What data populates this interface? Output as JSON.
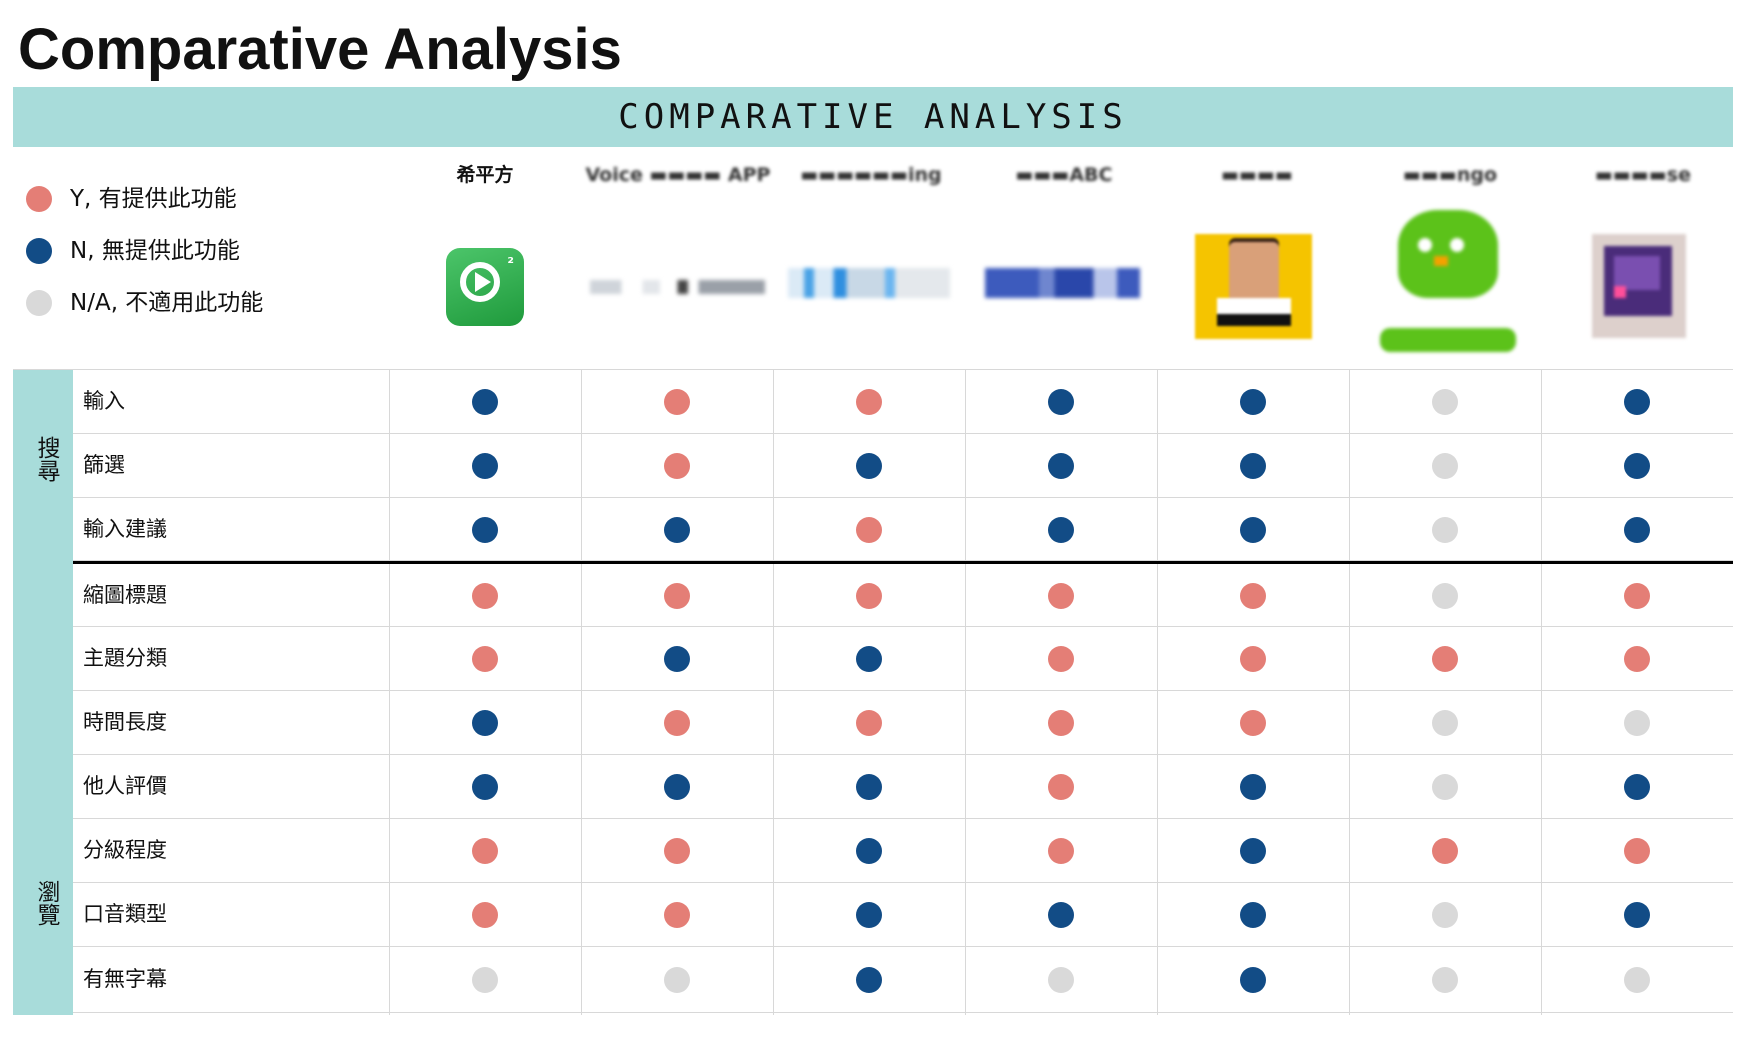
{
  "page": {
    "title": "Comparative Analysis"
  },
  "banner": {
    "text": "COMPARATIVE ANALYSIS"
  },
  "colors": {
    "Y": "#e47e76",
    "N": "#124c86",
    "NA": "#d9d9d9",
    "banner": "#a8dcda"
  },
  "legend": [
    {
      "key": "Y",
      "label": "Y, 有提供此功能"
    },
    {
      "key": "N",
      "label": "N, 無提供此功能"
    },
    {
      "key": "NA",
      "label": "N/A, 不適用此功能"
    }
  ],
  "products": [
    {
      "name": "希平方",
      "logo": "hiping-logo"
    },
    {
      "name": "Voice ▬▬▬▬ APP",
      "logo": "voice-app-logo"
    },
    {
      "name": "▬▬▬▬▬▬ing",
      "logo": "lyrics-logo"
    },
    {
      "name": "▬▬▬ABC",
      "logo": "abc-logo"
    },
    {
      "name": "▬▬▬▬",
      "logo": "tedx-logo"
    },
    {
      "name": "▬▬▬ngo",
      "logo": "duolingo-logo"
    },
    {
      "name": "▬▬▬▬se",
      "logo": "purple-app-logo"
    }
  ],
  "groups": [
    {
      "label": "搜尋",
      "rows": [
        0,
        1,
        2
      ]
    },
    {
      "label": "瀏覽",
      "rows": [
        3,
        4,
        5,
        6,
        7,
        8,
        9
      ]
    }
  ],
  "rows": [
    {
      "label": "輸入",
      "values": [
        "N",
        "Y",
        "Y",
        "N",
        "N",
        "NA",
        "N"
      ]
    },
    {
      "label": "篩選",
      "values": [
        "N",
        "Y",
        "N",
        "N",
        "N",
        "NA",
        "N"
      ]
    },
    {
      "label": "輸入建議",
      "values": [
        "N",
        "N",
        "Y",
        "N",
        "N",
        "NA",
        "N"
      ]
    },
    {
      "label": "縮圖標題",
      "values": [
        "Y",
        "Y",
        "Y",
        "Y",
        "Y",
        "NA",
        "Y"
      ]
    },
    {
      "label": "主題分類",
      "values": [
        "Y",
        "N",
        "N",
        "Y",
        "Y",
        "Y",
        "Y"
      ]
    },
    {
      "label": "時間長度",
      "values": [
        "N",
        "Y",
        "Y",
        "Y",
        "Y",
        "NA",
        "NA"
      ]
    },
    {
      "label": "他人評價",
      "values": [
        "N",
        "N",
        "N",
        "Y",
        "N",
        "NA",
        "N"
      ]
    },
    {
      "label": "分級程度",
      "values": [
        "Y",
        "Y",
        "N",
        "Y",
        "N",
        "Y",
        "Y"
      ]
    },
    {
      "label": "口音類型",
      "values": [
        "Y",
        "Y",
        "N",
        "N",
        "N",
        "NA",
        "N"
      ]
    },
    {
      "label": "有無字幕",
      "values": [
        "NA",
        "NA",
        "N",
        "NA",
        "N",
        "NA",
        "NA"
      ]
    }
  ]
}
